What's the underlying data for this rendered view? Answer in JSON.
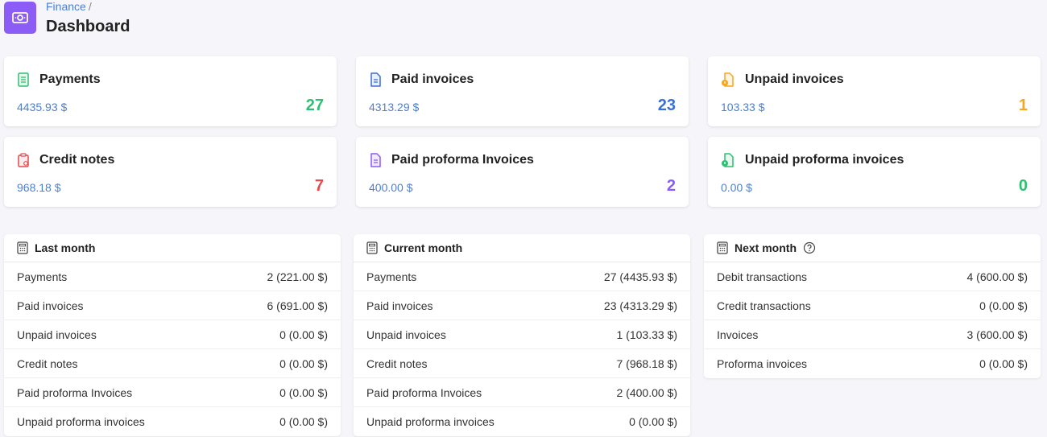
{
  "header": {
    "breadcrumb": "Finance",
    "separator": "/",
    "title": "Dashboard",
    "icon": "money-icon",
    "icon_color": "#8b5cf6"
  },
  "cards": [
    {
      "title": "Payments",
      "amount": "4435.93 $",
      "count": "27",
      "color": "#2fbf71",
      "icon": "document-icon"
    },
    {
      "title": "Paid invoices",
      "amount": "4313.29 $",
      "count": "23",
      "color": "#3b6fd6",
      "icon": "invoice-icon"
    },
    {
      "title": "Unpaid invoices",
      "amount": "103.33 $",
      "count": "1",
      "color": "#f5a623",
      "icon": "unpaid-invoice-icon"
    },
    {
      "title": "Credit notes",
      "amount": "968.18 $",
      "count": "7",
      "color": "#e5484d",
      "icon": "clipboard-icon"
    },
    {
      "title": "Paid proforma Invoices",
      "amount": "400.00 $",
      "count": "2",
      "color": "#8b5cf6",
      "icon": "proforma-icon"
    },
    {
      "title": "Unpaid proforma invoices",
      "amount": "0.00 $",
      "count": "0",
      "color": "#2fbf71",
      "icon": "unpaid-proforma-icon"
    }
  ],
  "panels": {
    "last_month": {
      "title": "Last month",
      "rows": [
        {
          "label": "Payments",
          "value": "2 (221.00 $)"
        },
        {
          "label": "Paid invoices",
          "value": "6 (691.00 $)"
        },
        {
          "label": "Unpaid invoices",
          "value": "0 (0.00 $)"
        },
        {
          "label": "Credit notes",
          "value": "0 (0.00 $)"
        },
        {
          "label": "Paid proforma Invoices",
          "value": "0 (0.00 $)"
        },
        {
          "label": "Unpaid proforma invoices",
          "value": "0 (0.00 $)"
        }
      ]
    },
    "current_month": {
      "title": "Current month",
      "rows": [
        {
          "label": "Payments",
          "value": "27 (4435.93 $)"
        },
        {
          "label": "Paid invoices",
          "value": "23 (4313.29 $)"
        },
        {
          "label": "Unpaid invoices",
          "value": "1 (103.33 $)"
        },
        {
          "label": "Credit notes",
          "value": "7 (968.18 $)"
        },
        {
          "label": "Paid proforma Invoices",
          "value": "2 (400.00 $)"
        },
        {
          "label": "Unpaid proforma invoices",
          "value": "0 (0.00 $)"
        }
      ]
    },
    "next_month": {
      "title": "Next month",
      "rows": [
        {
          "label": "Debit transactions",
          "value": "4 (600.00 $)"
        },
        {
          "label": "Credit transactions",
          "value": "0 (0.00 $)"
        },
        {
          "label": "Invoices",
          "value": "3 (600.00 $)"
        },
        {
          "label": "Proforma invoices",
          "value": "0 (0.00 $)"
        }
      ]
    }
  }
}
